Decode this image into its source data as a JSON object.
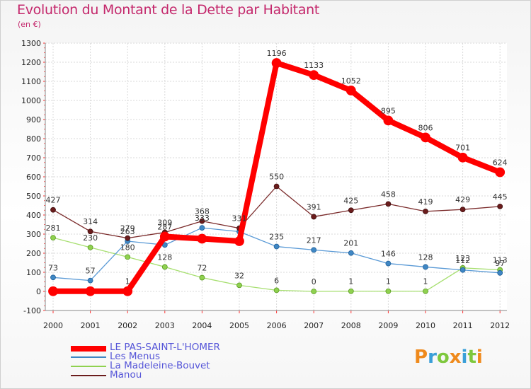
{
  "header": {
    "title": "Evolution du Montant de la Dette par Habitant",
    "subtitle": "(en €)"
  },
  "brand": {
    "letters": [
      "P",
      "r",
      "o",
      "x",
      "i",
      "t",
      "i"
    ],
    "colors": [
      "#ef8a1c",
      "#3a9fd8",
      "#7ec83d",
      "#ef8a1c",
      "#3a9fd8",
      "#7ec83d",
      "#ef8a1c"
    ]
  },
  "chart_data": {
    "type": "line",
    "title": "Evolution du Montant de la Dette par Habitant",
    "subtitle": "(en €)",
    "xlabel": "",
    "ylabel": "",
    "categories": [
      "2000",
      "2001",
      "2002",
      "2003",
      "2004",
      "2005",
      "2006",
      "2007",
      "2008",
      "2009",
      "2010",
      "2011",
      "2012"
    ],
    "ylim": [
      -100,
      1300
    ],
    "yticks": [
      -100,
      0,
      100,
      200,
      300,
      400,
      500,
      600,
      700,
      800,
      900,
      1000,
      1100,
      1200,
      1300
    ],
    "grid": true,
    "legend_position": "bottom-left",
    "series": [
      {
        "name": "LE PAS-SAINT-L'HOMER",
        "color": "#ff0000",
        "values": [
          1,
          1,
          1,
          287,
          276,
          263,
          1196,
          1133,
          1052,
          895,
          806,
          701,
          624
        ],
        "labels": [
          "",
          "",
          "1",
          "287",
          "",
          "",
          "1196",
          "1133",
          "1052",
          "895",
          "806",
          "701",
          "624"
        ]
      },
      {
        "name": "Les Menus",
        "color": "#3f87c4",
        "values": [
          73,
          57,
          263,
          243,
          333,
          313,
          235,
          217,
          201,
          146,
          128,
          112,
          97
        ],
        "labels": [
          "73",
          "57",
          "263",
          "",
          "333",
          "",
          "235",
          "217",
          "201",
          "146",
          "128",
          "112",
          "97"
        ]
      },
      {
        "name": "La Madeleine-Bouvet",
        "color": "#8fd14f",
        "values": [
          281,
          230,
          180,
          128,
          72,
          32,
          6,
          0,
          1,
          1,
          1,
          123,
          113
        ],
        "labels": [
          "281",
          "230",
          "180",
          "128",
          "72",
          "32",
          "6",
          "0",
          "1",
          "1",
          "1",
          "123",
          "113"
        ]
      },
      {
        "name": "Manou",
        "color": "#6b1c1c",
        "values": [
          427,
          314,
          279,
          309,
          368,
          331,
          550,
          391,
          425,
          458,
          419,
          429,
          445
        ],
        "labels": [
          "427",
          "314",
          "279",
          "309",
          "368",
          "331",
          "550",
          "391",
          "425",
          "458",
          "419",
          "429",
          "445"
        ]
      }
    ]
  }
}
